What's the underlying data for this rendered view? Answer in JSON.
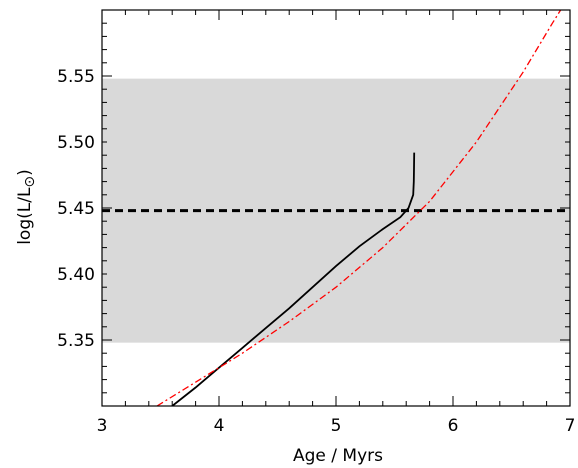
{
  "chart_data": {
    "type": "line",
    "xlabel": "Age / Myrs",
    "ylabel": "log(L/L",
    "ylabel_symbol": "⊙",
    "ylabel_close": ")",
    "xlim": [
      3,
      7
    ],
    "ylim": [
      5.3,
      5.6
    ],
    "xticks": [
      {
        "value": 3,
        "label": "3"
      },
      {
        "value": 4,
        "label": "4"
      },
      {
        "value": 5,
        "label": "5"
      },
      {
        "value": 6,
        "label": "6"
      },
      {
        "value": 7,
        "label": "7"
      }
    ],
    "yticks": [
      {
        "value": 5.35,
        "label": "5.35"
      },
      {
        "value": 5.4,
        "label": "5.40"
      },
      {
        "value": 5.45,
        "label": "5.45"
      },
      {
        "value": 5.5,
        "label": "5.50"
      },
      {
        "value": 5.55,
        "label": "5.55"
      }
    ],
    "band": {
      "y_low": 5.348,
      "y_high": 5.548,
      "color": "#d9d9d9"
    },
    "hline": {
      "y": 5.448,
      "style": "dashed",
      "color": "#000000"
    },
    "series": [
      {
        "style": "solid",
        "color": "#000000",
        "points": [
          [
            3.6,
            5.3
          ],
          [
            3.8,
            5.314
          ],
          [
            4.0,
            5.329
          ],
          [
            4.2,
            5.344
          ],
          [
            4.4,
            5.359
          ],
          [
            4.6,
            5.374
          ],
          [
            4.8,
            5.39
          ],
          [
            5.0,
            5.406
          ],
          [
            5.2,
            5.421
          ],
          [
            5.4,
            5.434
          ],
          [
            5.55,
            5.443
          ],
          [
            5.62,
            5.45
          ],
          [
            5.66,
            5.46
          ],
          [
            5.665,
            5.47
          ],
          [
            5.667,
            5.48
          ],
          [
            5.668,
            5.492
          ]
        ]
      },
      {
        "style": "dash-dot",
        "color": "#ff0000",
        "points": [
          [
            3.47,
            5.3
          ],
          [
            3.8,
            5.318
          ],
          [
            4.2,
            5.34
          ],
          [
            4.6,
            5.364
          ],
          [
            5.0,
            5.39
          ],
          [
            5.4,
            5.42
          ],
          [
            5.8,
            5.455
          ],
          [
            6.2,
            5.5
          ],
          [
            6.6,
            5.553
          ],
          [
            6.85,
            5.59
          ],
          [
            6.92,
            5.6
          ]
        ]
      }
    ]
  }
}
